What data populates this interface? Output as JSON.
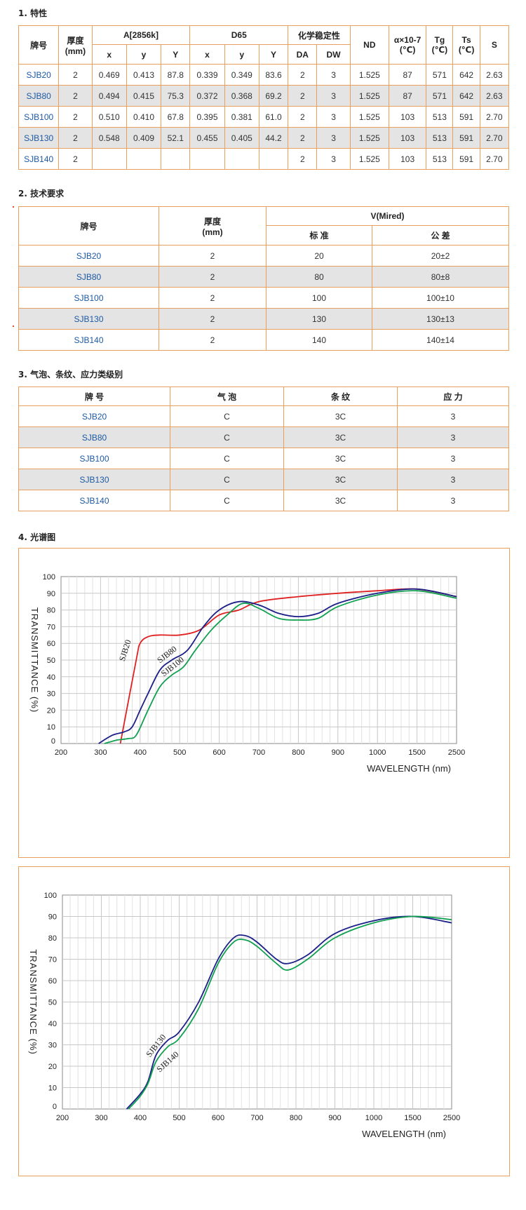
{
  "sections": {
    "s1": "1. 特性",
    "s2": "2. 技术要求",
    "s3": "3. 气泡、条纹、应力类级别",
    "s4": "4. 光谱图"
  },
  "table1": {
    "headers": {
      "brand": "牌号",
      "thickness": "厚度\n(mm)",
      "a2856": "A[2856k]",
      "d65": "D65",
      "chem": "化学稳定性",
      "nd": "ND",
      "alpha": "α×10-7\n(℃)",
      "tg": "Tg\n(℃)",
      "ts": "Ts\n(℃)",
      "s": "S",
      "sub": [
        "x",
        "y",
        "Y",
        "x",
        "y",
        "Y",
        "DA",
        "DW"
      ]
    },
    "rows": [
      [
        "SJB20",
        "2",
        "0.469",
        "0.413",
        "87.8",
        "0.339",
        "0.349",
        "83.6",
        "2",
        "3",
        "1.525",
        "87",
        "571",
        "642",
        "2.63"
      ],
      [
        "SJB80",
        "2",
        "0.494",
        "0.415",
        "75.3",
        "0.372",
        "0.368",
        "69.2",
        "2",
        "3",
        "1.525",
        "87",
        "571",
        "642",
        "2.63"
      ],
      [
        "SJB100",
        "2",
        "0.510",
        "0.410",
        "67.8",
        "0.395",
        "0.381",
        "61.0",
        "2",
        "3",
        "1.525",
        "103",
        "513",
        "591",
        "2.70"
      ],
      [
        "SJB130",
        "2",
        "0.548",
        "0.409",
        "52.1",
        "0.455",
        "0.405",
        "44.2",
        "2",
        "3",
        "1.525",
        "103",
        "513",
        "591",
        "2.70"
      ],
      [
        "SJB140",
        "2",
        "",
        "",
        "",
        "",
        "",
        "",
        "2",
        "3",
        "1.525",
        "103",
        "513",
        "591",
        "2.70"
      ]
    ]
  },
  "table2": {
    "headers": {
      "brand": "牌号",
      "thickness": "厚度\n(mm)",
      "vmired": "V(Mired)",
      "standard": "标 准",
      "tolerance": "公 差"
    },
    "rows": [
      [
        "SJB20",
        "2",
        "20",
        "20±2"
      ],
      [
        "SJB80",
        "2",
        "80",
        "80±8"
      ],
      [
        "SJB100",
        "2",
        "100",
        "100±10"
      ],
      [
        "SJB130",
        "2",
        "130",
        "130±13"
      ],
      [
        "SJB140",
        "2",
        "140",
        "140±14"
      ]
    ]
  },
  "table3": {
    "headers": [
      "牌 号",
      "气 泡",
      "条 纹",
      "应 力"
    ],
    "rows": [
      [
        "SJB20",
        "C",
        "3C",
        "3"
      ],
      [
        "SJB80",
        "C",
        "3C",
        "3"
      ],
      [
        "SJB100",
        "C",
        "3C",
        "3"
      ],
      [
        "SJB130",
        "C",
        "3C",
        "3"
      ],
      [
        "SJB140",
        "C",
        "3C",
        "3"
      ]
    ]
  },
  "chart_data": [
    {
      "type": "line",
      "title": "",
      "xlabel": "WAVELENGTH (nm)",
      "ylabel": "TRANSMITTANCE (%)",
      "xticks": [
        200,
        300,
        400,
        500,
        600,
        700,
        800,
        900,
        1000,
        1500,
        2500
      ],
      "yticks": [
        0,
        10,
        20,
        30,
        40,
        50,
        60,
        70,
        80,
        90,
        100
      ],
      "ylim": [
        0,
        100
      ],
      "grid": true,
      "series": [
        {
          "name": "SJB20",
          "color": "#e02020",
          "points": [
            [
              350,
              0
            ],
            [
              390,
              50
            ],
            [
              400,
              60
            ],
            [
              420,
              64
            ],
            [
              450,
              65
            ],
            [
              500,
              65
            ],
            [
              550,
              68
            ],
            [
              600,
              77
            ],
            [
              650,
              80
            ],
            [
              700,
              85
            ],
            [
              800,
              88
            ],
            [
              900,
              90
            ],
            [
              1000,
              91.5
            ],
            [
              1500,
              92.5
            ],
            [
              2500,
              88
            ]
          ]
        },
        {
          "name": "SJB80",
          "color": "#1c1f88",
          "points": [
            [
              295,
              0
            ],
            [
              330,
              5
            ],
            [
              360,
              7
            ],
            [
              380,
              10
            ],
            [
              400,
              20
            ],
            [
              420,
              30
            ],
            [
              450,
              44
            ],
            [
              480,
              50
            ],
            [
              520,
              56
            ],
            [
              560,
              70
            ],
            [
              600,
              80
            ],
            [
              650,
              85
            ],
            [
              700,
              83
            ],
            [
              750,
              78
            ],
            [
              800,
              76
            ],
            [
              850,
              78
            ],
            [
              900,
              84
            ],
            [
              1000,
              90
            ],
            [
              1500,
              92.5
            ],
            [
              2500,
              88
            ]
          ]
        },
        {
          "name": "SJB100",
          "color": "#10a050",
          "points": [
            [
              310,
              0
            ],
            [
              340,
              2
            ],
            [
              370,
              3
            ],
            [
              390,
              5
            ],
            [
              420,
              20
            ],
            [
              450,
              34
            ],
            [
              480,
              41
            ],
            [
              510,
              46
            ],
            [
              540,
              56
            ],
            [
              580,
              68
            ],
            [
              620,
              77
            ],
            [
              660,
              84
            ],
            [
              700,
              81
            ],
            [
              750,
              75
            ],
            [
              800,
              74
            ],
            [
              850,
              75
            ],
            [
              900,
              82
            ],
            [
              1000,
              89
            ],
            [
              1500,
              91.5
            ],
            [
              2500,
              87
            ]
          ]
        }
      ],
      "annotations": [
        "SJB20",
        "SJB80",
        "SJB100"
      ]
    },
    {
      "type": "line",
      "title": "",
      "xlabel": "WAVELENGTH (nm)",
      "ylabel": "TRANSMITTANCE (%)",
      "xticks": [
        200,
        300,
        400,
        500,
        600,
        700,
        800,
        900,
        1000,
        1500,
        2500
      ],
      "yticks": [
        0,
        10,
        20,
        30,
        40,
        50,
        60,
        70,
        80,
        90,
        100
      ],
      "ylim": [
        0,
        100
      ],
      "grid": true,
      "series": [
        {
          "name": "SJB130",
          "color": "#1c1f88",
          "points": [
            [
              365,
              0
            ],
            [
              400,
              7
            ],
            [
              420,
              13
            ],
            [
              440,
              25
            ],
            [
              470,
              32
            ],
            [
              500,
              36
            ],
            [
              550,
              50
            ],
            [
              600,
              70
            ],
            [
              640,
              80
            ],
            [
              670,
              81
            ],
            [
              700,
              78
            ],
            [
              750,
              70
            ],
            [
              780,
              68
            ],
            [
              830,
              72
            ],
            [
              900,
              82
            ],
            [
              1000,
              88
            ],
            [
              1500,
              90
            ],
            [
              2500,
              87
            ]
          ]
        },
        {
          "name": "SJB140",
          "color": "#10a050",
          "points": [
            [
              370,
              0
            ],
            [
              400,
              6
            ],
            [
              420,
              12
            ],
            [
              440,
              22
            ],
            [
              470,
              29
            ],
            [
              500,
              33
            ],
            [
              550,
              47
            ],
            [
              600,
              68
            ],
            [
              640,
              78
            ],
            [
              670,
              79
            ],
            [
              700,
              76
            ],
            [
              750,
              68
            ],
            [
              780,
              65
            ],
            [
              830,
              70
            ],
            [
              900,
              80
            ],
            [
              1000,
              87
            ],
            [
              1500,
              90
            ],
            [
              2500,
              88.5
            ]
          ]
        }
      ],
      "annotations": [
        "SJB130",
        "SJB140"
      ]
    }
  ]
}
